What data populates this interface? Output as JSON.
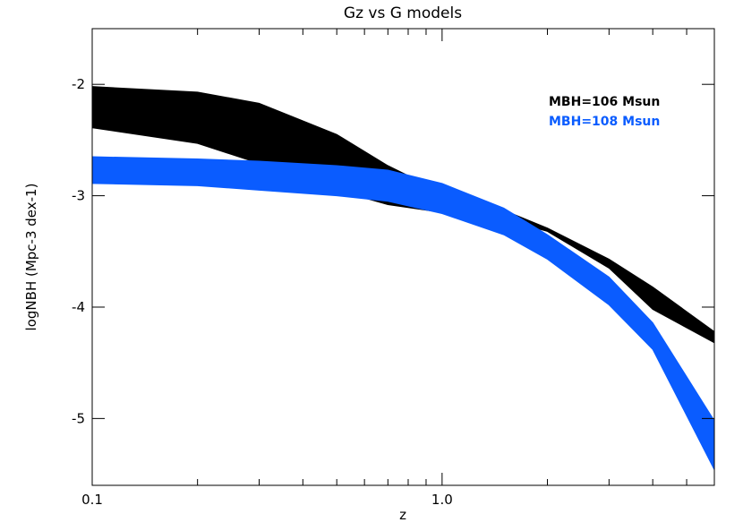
{
  "chart_data": {
    "type": "band",
    "title": "Gz vs G models",
    "xlabel": "z",
    "ylabel": "logNBH (Mpc-3 dex-1)",
    "xscale": "log",
    "xlim": [
      0.1,
      6
    ],
    "ylim": [
      -5.6,
      -1.5
    ],
    "xticks": [
      0.1,
      {
        "value": 1,
        "label": "1.0"
      }
    ],
    "xminorticks": [
      0.2,
      0.3,
      0.4,
      0.5,
      0.6,
      0.7,
      0.8,
      0.9,
      2,
      3,
      4,
      5
    ],
    "yticks": [
      -5,
      -4,
      -3,
      -2
    ],
    "legend": "upper right",
    "x": [
      0.1,
      0.2,
      0.3,
      0.5,
      0.7,
      1,
      1.5,
      2,
      3,
      4,
      6
    ],
    "series": [
      {
        "name": "MBH=106 Msun",
        "color": "#000000",
        "upper": [
          -2.02,
          -2.07,
          -2.17,
          -2.45,
          -2.73,
          -2.97,
          -3.13,
          -3.29,
          -3.57,
          -3.82,
          -4.22
        ],
        "lower": [
          -2.39,
          -2.53,
          -2.71,
          -2.95,
          -3.08,
          -3.15,
          -3.21,
          -3.32,
          -3.65,
          -4.02,
          -4.32
        ]
      },
      {
        "name": "MBH=108 Msun",
        "color": "#0a5cff",
        "upper": [
          -2.65,
          -2.67,
          -2.69,
          -2.73,
          -2.77,
          -2.89,
          -3.11,
          -3.35,
          -3.73,
          -4.14,
          -5.02
        ],
        "lower": [
          -2.89,
          -2.91,
          -2.95,
          -3.0,
          -3.05,
          -3.16,
          -3.35,
          -3.57,
          -3.98,
          -4.38,
          -5.46
        ]
      }
    ]
  }
}
